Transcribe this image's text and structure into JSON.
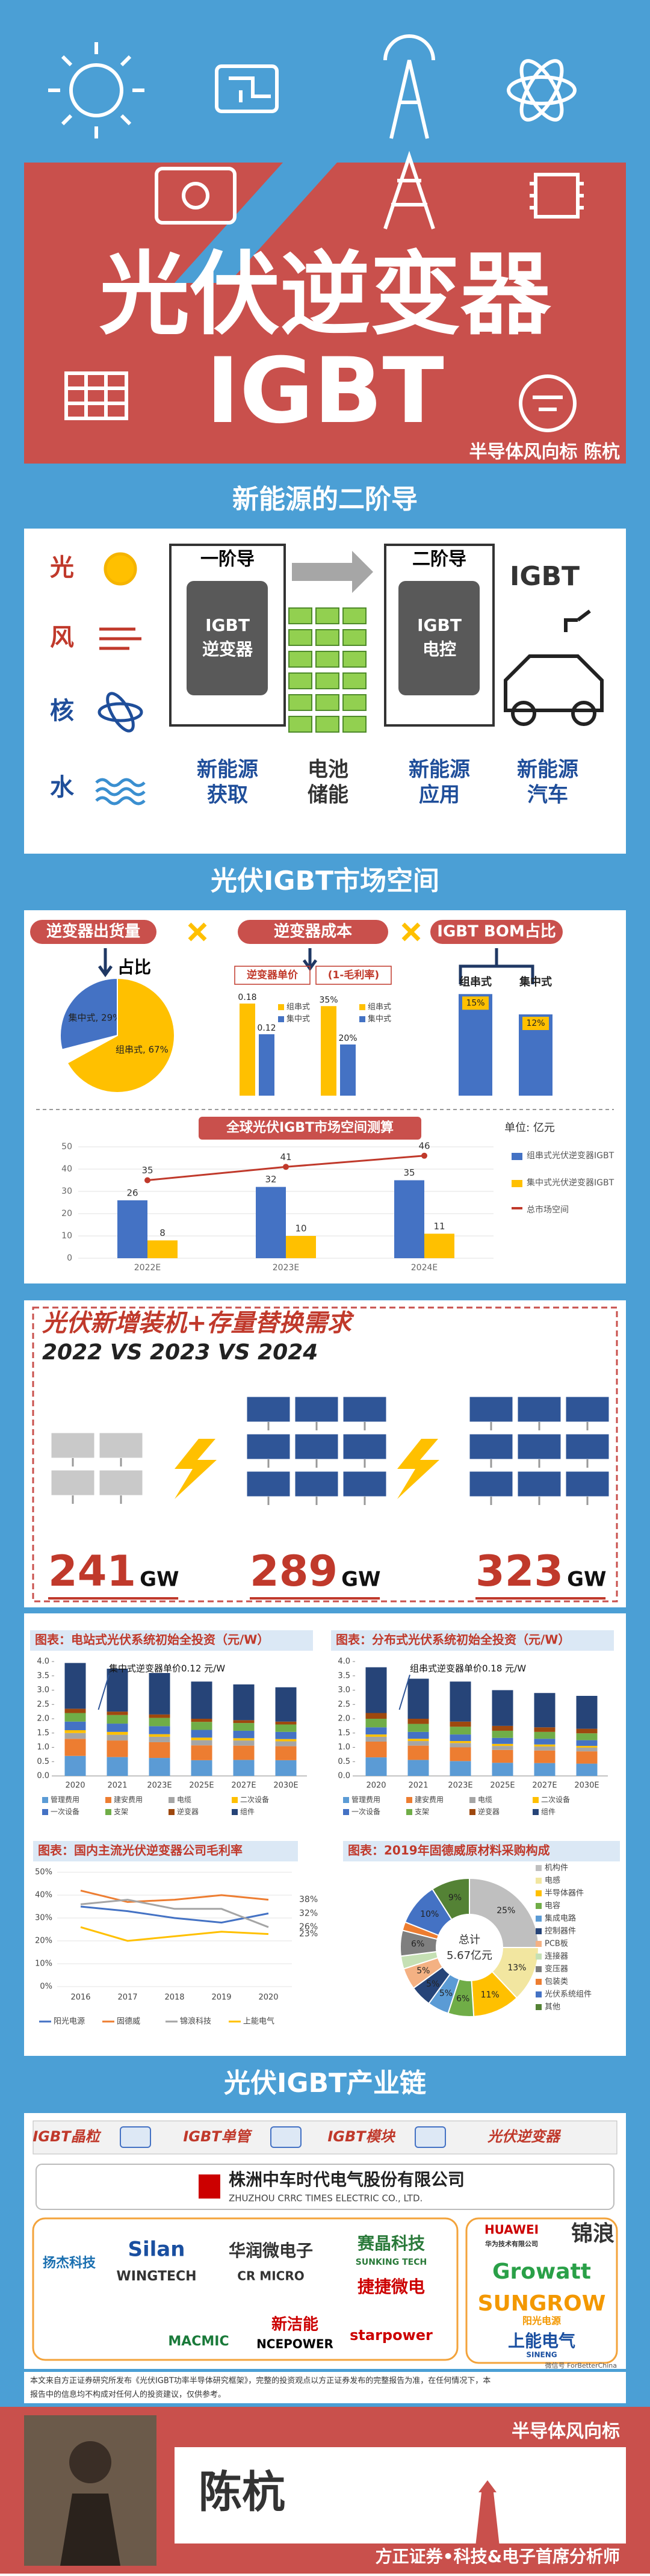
{
  "header": {
    "title": "光伏逆变器",
    "subtitle": "IGBT",
    "byline": "半导体风向标  陈杭"
  },
  "second_derivative": {
    "title": "新能源的二阶导",
    "sources": [
      "光",
      "风",
      "核",
      "水"
    ],
    "first": "一阶导",
    "second": "二阶导",
    "chip1": [
      "IGBT",
      "逆变器"
    ],
    "chip2": [
      "IGBT",
      "电控"
    ],
    "label_acquire": [
      "新能源",
      "获取"
    ],
    "label_storage": [
      "电池",
      "储能"
    ],
    "label_apply": [
      "新能源",
      "应用"
    ],
    "igbt": "IGBT",
    "label_car": [
      "新能源",
      "汽车"
    ]
  },
  "market": {
    "title": "光伏IGBT市场空间",
    "tags": [
      "逆变器出货量",
      "逆变器成本",
      "IGBT BOM占比"
    ],
    "share": "占比"
  },
  "capacity": {
    "title": "光伏新增装机+存量替换需求",
    "subtitle": "2022 VS 2023 VS 2024",
    "values": [
      241,
      289,
      323
    ],
    "unit": "GW"
  },
  "chain": {
    "title": "光伏IGBT产业链",
    "stages": [
      "IGBT晶粒",
      "IGBT单管",
      "IGBT模块",
      "光伏逆变器"
    ],
    "crrc": "株洲中车时代电气股份有限公司",
    "crrc_en": "ZHUZHOU CRRC TIMES ELECTRIC CO., LTD.",
    "suppliers": [
      "扬杰科技",
      "Silan",
      "WINGTECH",
      "华润微电子",
      "CR MICRO",
      "赛晶科技",
      "SUNKING TECH",
      "捷捷微电",
      "MACMIC",
      "新洁能",
      "NCEPOWER",
      "starpower"
    ],
    "customers": [
      "HUAWEI",
      "华为技术有限公司",
      "锦浪",
      "Growatt",
      "SUNGROW",
      "阳光电源",
      "上能电气",
      "SINENG"
    ],
    "wechat": "微信号 ForBetterChina"
  },
  "disclaimer": [
    "本文来自方正证券研究所发布《光伏IGBT功率半导体研究框架》，完整的投资观点以方正证券发布的完整报告为准，在任何情况下，本",
    "报告中的信息均不构成对任何人的投资建议，仅供参考。"
  ],
  "footer": {
    "name": "陈杭",
    "brand": "半导体风向标",
    "affiliation": "方正证券•科技&电子首席分析师"
  },
  "chart_data": [
    {
      "type": "pie",
      "values": [
        29,
        67
      ],
      "value_labels": [
        "集中式, 29%",
        "组串式, 67%"
      ],
      "colors": [
        "#4472c4",
        "#ffc000"
      ]
    },
    {
      "type": "bar",
      "title": "逆变器单价",
      "ylim": [
        0,
        0.2
      ],
      "series": [
        {
          "name": "组串式",
          "color": "#ffc000",
          "values": [
            0.18
          ]
        },
        {
          "name": "集中式",
          "color": "#4472c4",
          "values": [
            0.12
          ]
        }
      ]
    },
    {
      "type": "bar",
      "title": "(1-毛利率)",
      "ylim": [
        0,
        40
      ],
      "series": [
        {
          "name": "组串式",
          "color": "#ffc000",
          "values": [
            35
          ],
          "value_labels": [
            "35%"
          ]
        },
        {
          "name": "集中式",
          "color": "#4472c4",
          "values": [
            20
          ],
          "value_labels": [
            "20%"
          ]
        }
      ]
    },
    {
      "type": "bar",
      "categories": [
        "组串式",
        "集中式"
      ],
      "values": [
        15,
        12
      ],
      "value_labels": [
        "15%",
        "12%"
      ],
      "color": "#4472c4",
      "ylim": [
        0,
        16
      ]
    },
    {
      "type": "combo",
      "title": "全球光伏IGBT市场空间测算",
      "unit": "单位: 亿元",
      "categories": [
        "2022E",
        "2023E",
        "2024E"
      ],
      "ylim": [
        0,
        50
      ],
      "yticks": [
        0,
        10,
        20,
        30,
        40,
        50
      ],
      "grid": true,
      "series": [
        {
          "name": "组串式光伏逆变器IGBT",
          "color": "#4472c4",
          "kind": "bar",
          "values": [
            26,
            32,
            35
          ]
        },
        {
          "name": "集中式光伏逆变器IGBT",
          "color": "#ffc000",
          "kind": "bar",
          "values": [
            8,
            10,
            11
          ]
        },
        {
          "name": "总市场空间",
          "color": "#c0392b",
          "kind": "line",
          "values": [
            35,
            41,
            46
          ]
        }
      ]
    },
    {
      "type": "stacked_bar",
      "title": "图表：电站式光伏系统初始全投资（元/W）",
      "annotation": "集中式逆变器单价0.12 元/W",
      "categories": [
        "2020",
        "2021",
        "2023E",
        "2025E",
        "2027E",
        "2030E"
      ],
      "ylim": [
        0,
        4
      ],
      "yticks": [
        {
          "value": 0,
          "label": "0.0"
        },
        {
          "value": 0.5,
          "label": "0.5"
        },
        {
          "value": 1,
          "label": "1.0"
        },
        {
          "value": 1.5,
          "label": "1.5"
        },
        {
          "value": 2,
          "label": "2.0"
        },
        {
          "value": 2.5,
          "label": "2.5"
        },
        {
          "value": 3,
          "label": "3.0"
        },
        {
          "value": 3.5,
          "label": "3.5"
        },
        {
          "value": 4,
          "label": "4.0"
        }
      ],
      "series": [
        {
          "name": "管理费用",
          "color": "#5b9bd5",
          "values": [
            0.7,
            0.66,
            0.63,
            0.55,
            0.56,
            0.55
          ]
        },
        {
          "name": "建安费用",
          "color": "#ed7d31",
          "values": [
            0.6,
            0.58,
            0.55,
            0.52,
            0.5,
            0.49
          ]
        },
        {
          "name": "电缆",
          "color": "#a5a5a5",
          "values": [
            0.2,
            0.2,
            0.19,
            0.18,
            0.18,
            0.17
          ]
        },
        {
          "name": "二次设备",
          "color": "#ffc000",
          "values": [
            0.1,
            0.1,
            0.09,
            0.09,
            0.08,
            0.08
          ]
        },
        {
          "name": "一次设备",
          "color": "#4472c4",
          "values": [
            0.3,
            0.29,
            0.28,
            0.27,
            0.26,
            0.25
          ]
        },
        {
          "name": "支架",
          "color": "#70ad47",
          "values": [
            0.3,
            0.3,
            0.29,
            0.28,
            0.27,
            0.26
          ]
        },
        {
          "name": "逆变器",
          "color": "#9e480e",
          "values": [
            0.15,
            0.12,
            0.12,
            0.11,
            0.1,
            0.1
          ]
        },
        {
          "name": "组件",
          "color": "#264478",
          "values": [
            1.6,
            1.5,
            1.45,
            1.3,
            1.25,
            1.2
          ]
        }
      ]
    },
    {
      "type": "stacked_bar",
      "title": "图表：分布式光伏系统初始全投资（元/W）",
      "annotation": "组串式逆变器单价0.18 元/W",
      "categories": [
        "2020",
        "2021",
        "2023E",
        "2025E",
        "2027E",
        "2030E"
      ],
      "ylim": [
        0,
        4
      ],
      "yticks": [
        {
          "value": 0,
          "label": "0.0"
        },
        {
          "value": 0.5,
          "label": "0.5"
        },
        {
          "value": 1,
          "label": "1.0"
        },
        {
          "value": 1.5,
          "label": "1.5"
        },
        {
          "value": 2,
          "label": "2.0"
        },
        {
          "value": 2.5,
          "label": "2.5"
        },
        {
          "value": 3,
          "label": "3.0"
        },
        {
          "value": 3.5,
          "label": "3.5"
        },
        {
          "value": 4,
          "label": "4.0"
        }
      ],
      "series": [
        {
          "name": "管理费用",
          "color": "#5b9bd5",
          "values": [
            0.65,
            0.56,
            0.52,
            0.46,
            0.45,
            0.43
          ]
        },
        {
          "name": "建安费用",
          "color": "#ed7d31",
          "values": [
            0.55,
            0.5,
            0.48,
            0.45,
            0.44,
            0.43
          ]
        },
        {
          "name": "电缆",
          "color": "#a5a5a5",
          "values": [
            0.17,
            0.16,
            0.15,
            0.14,
            0.14,
            0.13
          ]
        },
        {
          "name": "二次设备",
          "color": "#ffc000",
          "values": [
            0.08,
            0.08,
            0.07,
            0.07,
            0.07,
            0.06
          ]
        },
        {
          "name": "一次设备",
          "color": "#4472c4",
          "values": [
            0.25,
            0.24,
            0.23,
            0.21,
            0.2,
            0.2
          ]
        },
        {
          "name": "支架",
          "color": "#70ad47",
          "values": [
            0.3,
            0.28,
            0.27,
            0.25,
            0.24,
            0.24
          ]
        },
        {
          "name": "逆变器",
          "color": "#9e480e",
          "values": [
            0.2,
            0.18,
            0.18,
            0.17,
            0.16,
            0.16
          ]
        },
        {
          "name": "组件",
          "color": "#264478",
          "values": [
            1.6,
            1.4,
            1.4,
            1.25,
            1.2,
            1.15
          ]
        }
      ]
    },
    {
      "type": "line",
      "title": "图表：国内主流光伏逆变器公司毛利率",
      "categories": [
        "2016",
        "2017",
        "2018",
        "2019",
        "2020"
      ],
      "ylim": [
        0,
        50
      ],
      "grid": true,
      "yticks": [
        {
          "value": 0,
          "label": "0%"
        },
        {
          "value": 10,
          "label": "10%"
        },
        {
          "value": 20,
          "label": "20%"
        },
        {
          "value": 30,
          "label": "30%"
        },
        {
          "value": 40,
          "label": "40%"
        },
        {
          "value": 50,
          "label": "50%"
        }
      ],
      "series": [
        {
          "name": "阳光电源",
          "color": "#4472c4",
          "values": [
            35,
            33,
            30,
            28,
            32
          ],
          "value_labels": [
            null,
            null,
            null,
            null,
            "32%"
          ]
        },
        {
          "name": "固德威",
          "color": "#ed7d31",
          "values": [
            42,
            37,
            38,
            40,
            38
          ],
          "value_labels": [
            null,
            null,
            null,
            null,
            "38%"
          ]
        },
        {
          "name": "锦浪科技",
          "color": "#a5a5a5",
          "values": [
            36,
            38,
            34,
            34,
            26
          ],
          "value_labels": [
            null,
            null,
            null,
            null,
            "26%"
          ]
        },
        {
          "name": "上能电气",
          "color": "#ffc000",
          "values": [
            26,
            20,
            22,
            24,
            23
          ],
          "value_labels": [
            null,
            null,
            null,
            null,
            "23%"
          ]
        }
      ]
    },
    {
      "type": "donut",
      "title": "图表：2019年固德威原材料采购构成",
      "center_label": "总计",
      "total_label": "5.67亿元",
      "categories": [
        "机构件",
        "电感",
        "半导体器件",
        "电容",
        "集成电路",
        "控制器件",
        "PCB板",
        "连接器",
        "变压器",
        "包装类",
        "光伏系统组件",
        "其他"
      ],
      "values": [
        25,
        13,
        11,
        6,
        5,
        5,
        5,
        3,
        6,
        2,
        10,
        9
      ],
      "value_labels": [
        "25%",
        "13%",
        "11%",
        "6%",
        "5%",
        "5%",
        "5%",
        null,
        "6%",
        null,
        "10%",
        "9%"
      ],
      "colors": [
        "#bfbfbf",
        "#f2e6a0",
        "#ffc000",
        "#70ad47",
        "#5b9bd5",
        "#264478",
        "#f4b183",
        "#c5e0b4",
        "#7f7f7f",
        "#ed7d31",
        "#4472c4",
        "#548235"
      ]
    }
  ]
}
